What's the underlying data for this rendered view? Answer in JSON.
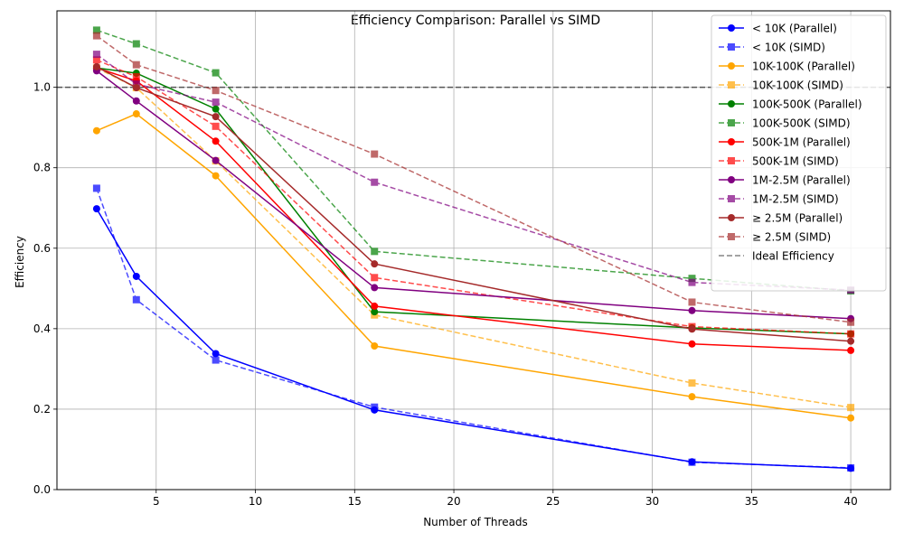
{
  "chart_data": {
    "type": "line",
    "title": "Efficiency Comparison: Parallel vs SIMD",
    "xlabel": "Number of Threads",
    "ylabel": "Efficiency",
    "xlim": [
      0,
      42
    ],
    "ylim": [
      0,
      1.19
    ],
    "xticks": [
      5,
      10,
      15,
      20,
      25,
      30,
      35,
      40
    ],
    "yticks": [
      0.0,
      0.2,
      0.4,
      0.6,
      0.8,
      1.0
    ],
    "grid": true,
    "legend_position": "top-right",
    "x": [
      2,
      4,
      8,
      16,
      32,
      40
    ],
    "reference_line": {
      "name": "Ideal Efficiency",
      "y": 1.0,
      "color": "#555555"
    },
    "series": [
      {
        "name": "< 10K (Parallel)",
        "color": "#0000ff",
        "style": "solid",
        "marker": "circle",
        "values": [
          0.698,
          0.53,
          0.338,
          0.198,
          0.069,
          0.053
        ]
      },
      {
        "name": "< 10K (SIMD)",
        "color": "#0000ff",
        "style": "dashed",
        "marker": "square",
        "values": [
          0.749,
          0.472,
          0.322,
          0.205,
          0.068,
          0.054
        ]
      },
      {
        "name": "10K-100K (Parallel)",
        "color": "#ffa500",
        "style": "solid",
        "marker": "circle",
        "values": [
          0.892,
          0.934,
          0.78,
          0.357,
          0.231,
          0.178
        ]
      },
      {
        "name": "10K-100K (SIMD)",
        "color": "#ffa500",
        "style": "dashed",
        "marker": "square",
        "values": [
          1.048,
          0.999,
          0.817,
          0.434,
          0.265,
          0.204
        ]
      },
      {
        "name": "100K-500K (Parallel)",
        "color": "#008000",
        "style": "solid",
        "marker": "circle",
        "values": [
          1.048,
          1.035,
          0.946,
          0.442,
          0.402,
          0.387
        ]
      },
      {
        "name": "100K-500K (SIMD)",
        "color": "#008000",
        "style": "dashed",
        "marker": "square",
        "values": [
          1.142,
          1.108,
          1.036,
          0.592,
          0.525,
          0.494
        ]
      },
      {
        "name": "500K-1M (Parallel)",
        "color": "#ff0000",
        "style": "solid",
        "marker": "circle",
        "values": [
          1.048,
          1.016,
          0.866,
          0.456,
          0.362,
          0.346
        ]
      },
      {
        "name": "500K-1M (SIMD)",
        "color": "#ff0000",
        "style": "dashed",
        "marker": "square",
        "values": [
          1.068,
          1.026,
          0.903,
          0.527,
          0.405,
          0.387
        ]
      },
      {
        "name": "1M-2.5M (Parallel)",
        "color": "#800080",
        "style": "solid",
        "marker": "circle",
        "values": [
          1.041,
          0.966,
          0.818,
          0.502,
          0.445,
          0.425
        ]
      },
      {
        "name": "1M-2.5M (SIMD)",
        "color": "#800080",
        "style": "dashed",
        "marker": "square",
        "values": [
          1.082,
          1.008,
          0.963,
          0.764,
          0.515,
          0.496
        ]
      },
      {
        "name": "≥ 2.5M (Parallel)",
        "color": "#a52a2a",
        "style": "solid",
        "marker": "circle",
        "values": [
          1.051,
          0.999,
          0.927,
          0.561,
          0.399,
          0.369
        ]
      },
      {
        "name": "≥ 2.5M (SIMD)",
        "color": "#a52a2a",
        "style": "dashed",
        "marker": "square",
        "values": [
          1.128,
          1.056,
          0.992,
          0.834,
          0.466,
          0.416
        ]
      }
    ]
  }
}
